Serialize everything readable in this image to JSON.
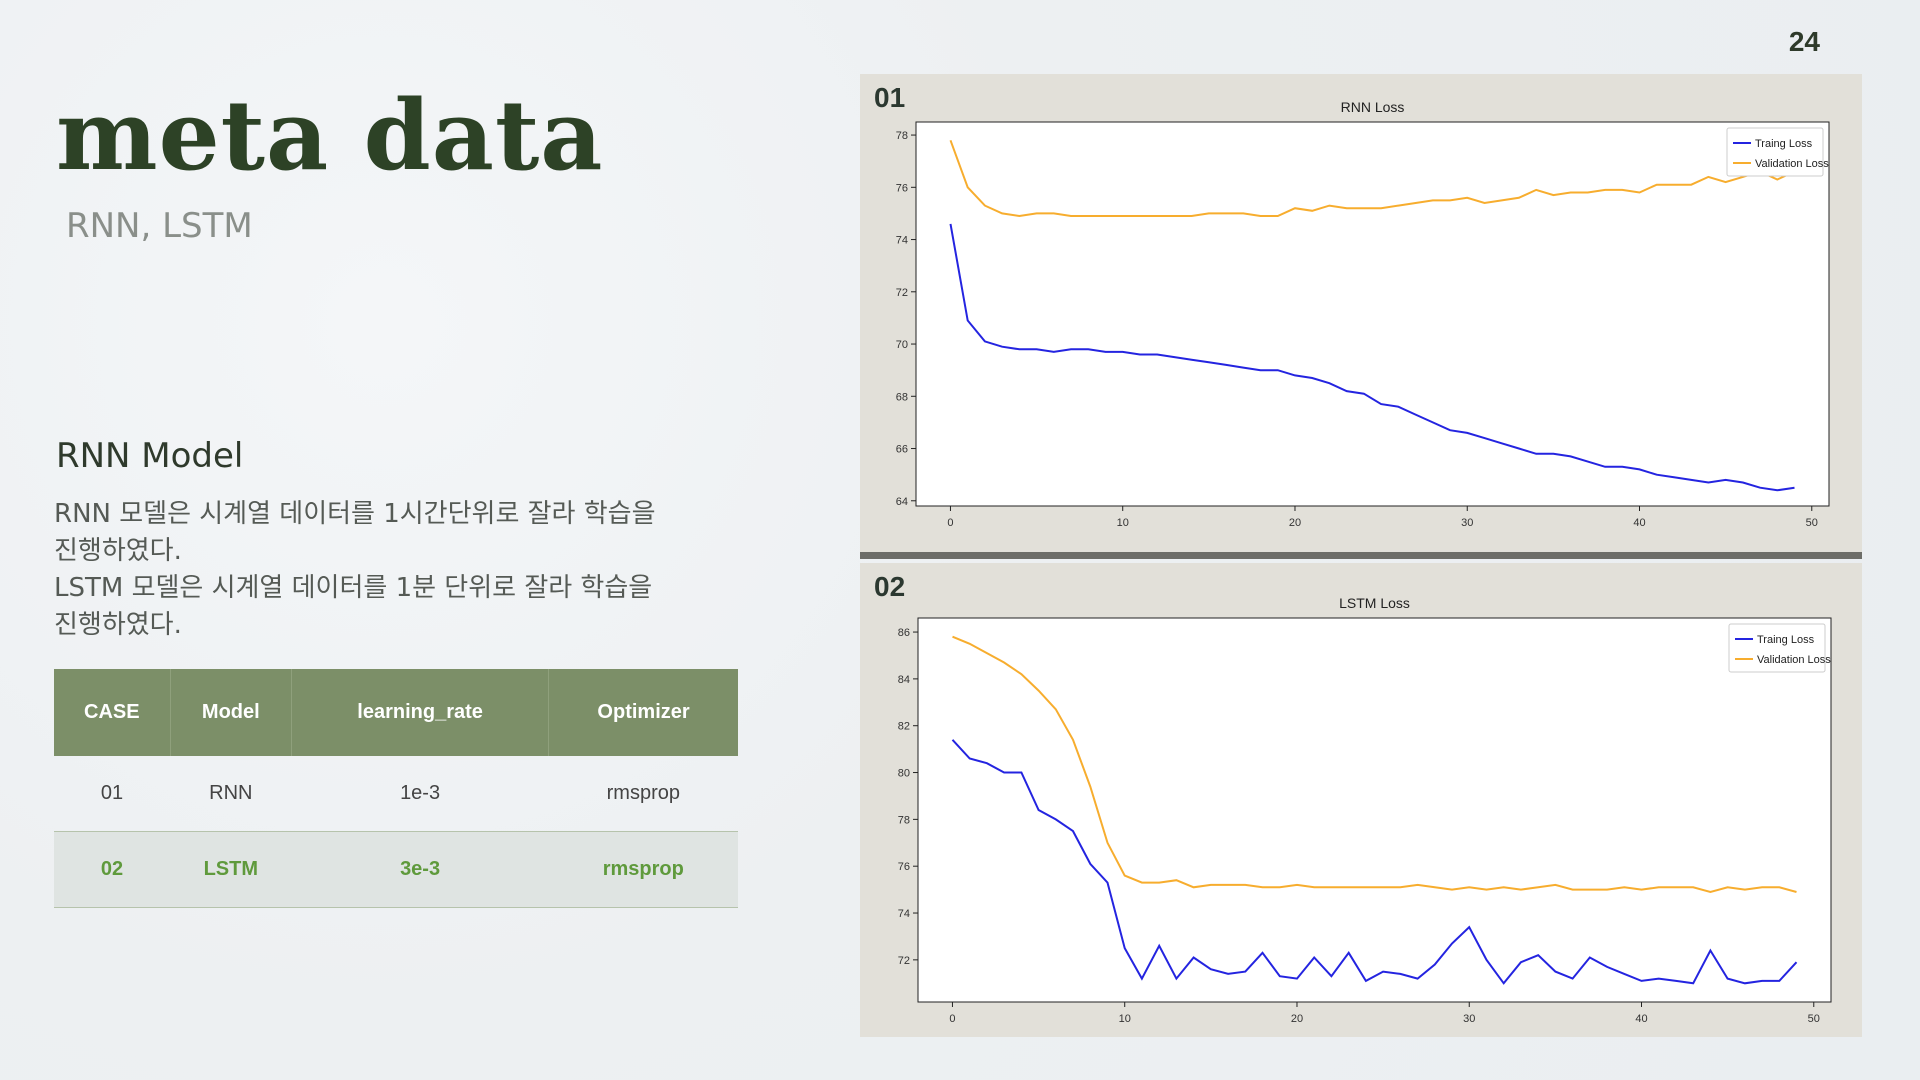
{
  "page_number": "24",
  "title": "meta data",
  "subtitle": "RNN, LSTM",
  "section_heading": "RNN Model",
  "description": [
    "RNN 모델은 시계열 데이터를 1시간단위로 잘라 학습을",
    "진행하였다.",
    "LSTM 모델은 시계열 데이터를 1분 단위로 잘라 학습을",
    "진행하였다."
  ],
  "table": {
    "headers": [
      "CASE",
      "Model",
      "learning_rate",
      "Optimizer"
    ],
    "rows": [
      {
        "case": "01",
        "model": "RNN",
        "learning_rate": "1e-3",
        "optimizer": "rmsprop"
      },
      {
        "case": "02",
        "model": "LSTM",
        "learning_rate": "3e-3",
        "optimizer": "rmsprop"
      }
    ]
  },
  "panels": [
    {
      "label": "01"
    },
    {
      "label": "02"
    }
  ],
  "colors": {
    "training": "#2424e0",
    "validation": "#f7ad2e"
  },
  "chart_data": [
    {
      "type": "line",
      "title": "RNN Loss",
      "xlabel": "",
      "ylabel": "",
      "xlim": [
        -2,
        51
      ],
      "ylim": [
        63.8,
        78.5
      ],
      "x_ticks": [
        0,
        10,
        20,
        30,
        40,
        50
      ],
      "y_ticks": [
        64,
        66,
        68,
        70,
        72,
        74,
        76,
        78
      ],
      "legend": "top-right",
      "grid": false,
      "series": [
        {
          "name": "Traing Loss",
          "color": "#2424e0",
          "x": [
            0,
            1,
            2,
            3,
            4,
            5,
            6,
            7,
            8,
            9,
            10,
            11,
            12,
            13,
            14,
            15,
            16,
            17,
            18,
            19,
            20,
            21,
            22,
            23,
            24,
            25,
            26,
            27,
            28,
            29,
            30,
            31,
            32,
            33,
            34,
            35,
            36,
            37,
            38,
            39,
            40,
            41,
            42,
            43,
            44,
            45,
            46,
            47,
            48,
            49
          ],
          "values": [
            74.6,
            70.9,
            70.1,
            69.9,
            69.8,
            69.8,
            69.7,
            69.8,
            69.8,
            69.7,
            69.7,
            69.6,
            69.6,
            69.5,
            69.4,
            69.3,
            69.2,
            69.1,
            69.0,
            69.0,
            68.8,
            68.7,
            68.5,
            68.2,
            68.1,
            67.7,
            67.6,
            67.3,
            67.0,
            66.7,
            66.6,
            66.4,
            66.2,
            66.0,
            65.8,
            65.8,
            65.7,
            65.5,
            65.3,
            65.3,
            65.2,
            65.0,
            64.9,
            64.8,
            64.7,
            64.8,
            64.7,
            64.5,
            64.4,
            64.5
          ]
        },
        {
          "name": "Validation Loss",
          "color": "#f7ad2e",
          "x": [
            0,
            1,
            2,
            3,
            4,
            5,
            6,
            7,
            8,
            9,
            10,
            11,
            12,
            13,
            14,
            15,
            16,
            17,
            18,
            19,
            20,
            21,
            22,
            23,
            24,
            25,
            26,
            27,
            28,
            29,
            30,
            31,
            32,
            33,
            34,
            35,
            36,
            37,
            38,
            39,
            40,
            41,
            42,
            43,
            44,
            45,
            46,
            47,
            48,
            49
          ],
          "values": [
            77.8,
            76.0,
            75.3,
            75.0,
            74.9,
            75.0,
            75.0,
            74.9,
            74.9,
            74.9,
            74.9,
            74.9,
            74.9,
            74.9,
            74.9,
            75.0,
            75.0,
            75.0,
            74.9,
            74.9,
            75.2,
            75.1,
            75.3,
            75.2,
            75.2,
            75.2,
            75.3,
            75.4,
            75.5,
            75.5,
            75.6,
            75.4,
            75.5,
            75.6,
            75.9,
            75.7,
            75.8,
            75.8,
            75.9,
            75.9,
            75.8,
            76.1,
            76.1,
            76.1,
            76.4,
            76.2,
            76.4,
            76.6,
            76.3,
            76.6
          ]
        }
      ]
    },
    {
      "type": "line",
      "title": "LSTM Loss",
      "xlabel": "",
      "ylabel": "",
      "xlim": [
        -2,
        51
      ],
      "ylim": [
        70.2,
        86.6
      ],
      "x_ticks": [
        0,
        10,
        20,
        30,
        40,
        50
      ],
      "y_ticks": [
        72,
        74,
        76,
        78,
        80,
        82,
        84,
        86
      ],
      "legend": "top-right",
      "grid": false,
      "series": [
        {
          "name": "Traing Loss",
          "color": "#2424e0",
          "x": [
            0,
            1,
            2,
            3,
            4,
            5,
            6,
            7,
            8,
            9,
            10,
            11,
            12,
            13,
            14,
            15,
            16,
            17,
            18,
            19,
            20,
            21,
            22,
            23,
            24,
            25,
            26,
            27,
            28,
            29,
            30,
            31,
            32,
            33,
            34,
            35,
            36,
            37,
            38,
            39,
            40,
            41,
            42,
            43,
            44,
            45,
            46,
            47,
            48,
            49
          ],
          "values": [
            81.4,
            80.6,
            80.4,
            80.0,
            80.0,
            78.4,
            78.0,
            77.5,
            76.1,
            75.3,
            72.5,
            71.2,
            72.6,
            71.2,
            72.1,
            71.6,
            71.4,
            71.5,
            72.3,
            71.3,
            71.2,
            72.1,
            71.3,
            72.3,
            71.1,
            71.5,
            71.4,
            71.2,
            71.8,
            72.7,
            73.4,
            72.0,
            71.0,
            71.9,
            72.2,
            71.5,
            71.2,
            72.1,
            71.7,
            71.4,
            71.1,
            71.2,
            71.1,
            71.0,
            72.4,
            71.2,
            71.0,
            71.1,
            71.1,
            71.9
          ]
        },
        {
          "name": "Validation Loss",
          "color": "#f7ad2e",
          "x": [
            0,
            1,
            2,
            3,
            4,
            5,
            6,
            7,
            8,
            9,
            10,
            11,
            12,
            13,
            14,
            15,
            16,
            17,
            18,
            19,
            20,
            21,
            22,
            23,
            24,
            25,
            26,
            27,
            28,
            29,
            30,
            31,
            32,
            33,
            34,
            35,
            36,
            37,
            38,
            39,
            40,
            41,
            42,
            43,
            44,
            45,
            46,
            47,
            48,
            49
          ],
          "values": [
            85.8,
            85.5,
            85.1,
            84.7,
            84.2,
            83.5,
            82.7,
            81.4,
            79.4,
            77.0,
            75.6,
            75.3,
            75.3,
            75.4,
            75.1,
            75.2,
            75.2,
            75.2,
            75.1,
            75.1,
            75.2,
            75.1,
            75.1,
            75.1,
            75.1,
            75.1,
            75.1,
            75.2,
            75.1,
            75.0,
            75.1,
            75.0,
            75.1,
            75.0,
            75.1,
            75.2,
            75.0,
            75.0,
            75.0,
            75.1,
            75.0,
            75.1,
            75.1,
            75.1,
            74.9,
            75.1,
            75.0,
            75.1,
            75.1,
            74.9
          ]
        }
      ]
    }
  ]
}
